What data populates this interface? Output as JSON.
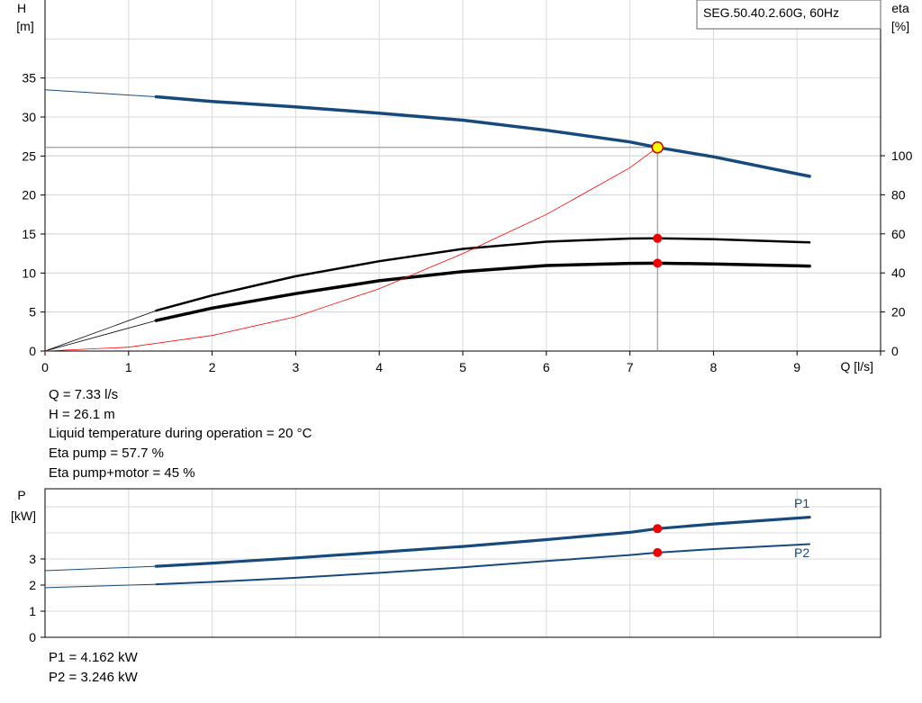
{
  "chart_data": [
    {
      "type": "line",
      "title": "SEG.50.40.2.60G, 60Hz",
      "xlabel": "Q [l/s]",
      "ylabel_left": [
        "H",
        "[m]"
      ],
      "ylabel_right": [
        "eta",
        "[%]"
      ],
      "xlim": [
        0,
        10
      ],
      "ylim_left": [
        0,
        45
      ],
      "ylim_right": [
        0,
        100
      ],
      "x_ticks": [
        "0",
        "1",
        "2",
        "3",
        "4",
        "5",
        "6",
        "7",
        "8",
        "9"
      ],
      "y_ticks_left": [
        "0",
        "5",
        "10",
        "15",
        "20",
        "25",
        "30",
        "35"
      ],
      "y_ticks_right": [
        "0",
        "20",
        "40",
        "60",
        "80",
        "100"
      ],
      "grid": true,
      "series": [
        {
          "axis": "left",
          "color": "#174a7c",
          "x": [
            0,
            1.33,
            2,
            3,
            4,
            5,
            6,
            7,
            7.33,
            8,
            9.15
          ],
          "y": [
            33.5,
            32.6,
            32.0,
            31.3,
            30.5,
            29.6,
            28.3,
            26.8,
            26.1,
            24.9,
            22.4
          ]
        },
        {
          "axis": "right",
          "color": "#000000",
          "x": [
            0,
            1.33,
            2,
            3,
            4,
            5,
            6,
            7,
            7.33,
            8,
            9.15
          ],
          "y": [
            0,
            20.7,
            28.5,
            38.3,
            46.0,
            52.3,
            56.0,
            57.6,
            57.7,
            57.3,
            55.6
          ]
        },
        {
          "axis": "right",
          "color": "#000000",
          "x": [
            0,
            1.33,
            2,
            3,
            4,
            5,
            6,
            7,
            7.33,
            8,
            9.15
          ],
          "y": [
            0,
            15.6,
            22.0,
            29.4,
            36.0,
            40.7,
            43.8,
            44.9,
            45.0,
            44.6,
            43.5
          ]
        },
        {
          "axis": "left",
          "color": "#ff0000",
          "x": [
            0,
            1,
            2,
            3,
            4,
            5,
            6,
            7,
            7.33
          ],
          "y": [
            0,
            0.5,
            2.0,
            4.4,
            8.0,
            12.5,
            17.5,
            23.5,
            26.1
          ]
        }
      ],
      "operating_point": {
        "x": 7.33,
        "h": 26.1,
        "eta_pump": 57.7,
        "eta_total": 45
      }
    },
    {
      "type": "line",
      "ylabel": [
        "P",
        "[kW]"
      ],
      "xlim": [
        0,
        10
      ],
      "ylim": [
        0,
        5
      ],
      "y_ticks": [
        "0",
        "1",
        "2",
        "3"
      ],
      "grid": true,
      "series": [
        {
          "name": "P1",
          "color": "#174a7c",
          "x": [
            0,
            1.33,
            2,
            3,
            4,
            5,
            6,
            7,
            7.33,
            8,
            9.15
          ],
          "y": [
            2.55,
            2.72,
            2.84,
            3.04,
            3.26,
            3.48,
            3.74,
            4.02,
            4.162,
            4.34,
            4.6
          ]
        },
        {
          "name": "P2",
          "color": "#174a7c",
          "x": [
            0,
            1.33,
            2,
            3,
            4,
            5,
            6,
            7,
            7.33,
            8,
            9.15
          ],
          "y": [
            1.9,
            2.03,
            2.12,
            2.28,
            2.47,
            2.68,
            2.92,
            3.15,
            3.246,
            3.38,
            3.57
          ]
        }
      ],
      "operating_point": {
        "x": 7.33,
        "p1": 4.162,
        "p2": 3.246
      }
    }
  ],
  "info": {
    "q": "Q = 7.33 l/s",
    "h": "H = 26.1 m",
    "temp": "Liquid temperature during operation = 20 °C",
    "eta_pump": "Eta pump = 57.7 %",
    "eta_total": "Eta pump+motor = 45 %",
    "p1": "P1 = 4.162 kW",
    "p2": "P2 = 3.246 kW"
  }
}
